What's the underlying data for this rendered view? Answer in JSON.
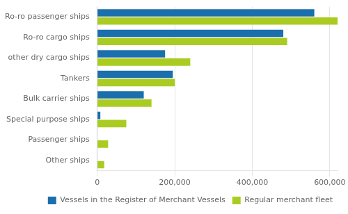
{
  "chart_data": {
    "type": "bar",
    "orientation": "horizontal",
    "categories": [
      "Other ships",
      "Passenger ships",
      "Special purpose ships",
      "Bulk carrier ships",
      "Tankers",
      "other dry cargo ships",
      "Ro-ro cargo ships",
      "Ro-ro passenger ships"
    ],
    "series": [
      {
        "name": "Vessels in the Register of Merchant Vessels",
        "color": "#1B6FAD",
        "values": [
          0,
          0,
          8000,
          120000,
          195000,
          175000,
          480000,
          560000
        ]
      },
      {
        "name": "Regular merchant fleet",
        "color": "#AACC22",
        "values": [
          18000,
          28000,
          75000,
          140000,
          200000,
          240000,
          490000,
          620000
        ]
      }
    ],
    "xlim": [
      0,
      620000
    ],
    "xticks": [
      0,
      {
        "value": 200000,
        "label": "200,000"
      },
      {
        "value": 400000,
        "label": "400,000"
      },
      {
        "value": 600000,
        "label": "600,000"
      }
    ],
    "grid": true,
    "legend": "lower right"
  }
}
